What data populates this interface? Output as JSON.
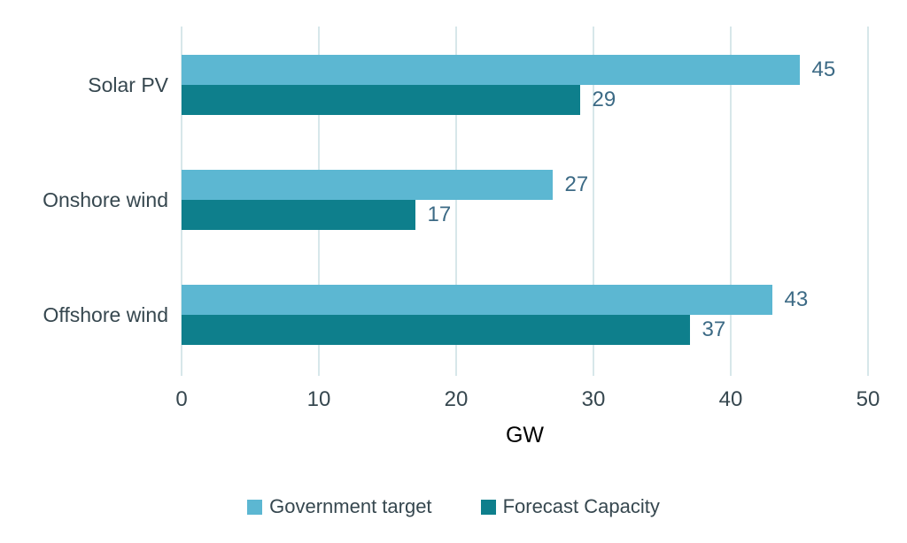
{
  "chart_data": {
    "type": "bar",
    "orientation": "horizontal",
    "categories": [
      "Solar PV",
      "Onshore wind",
      "Offshore wind"
    ],
    "series": [
      {
        "name": "Government target",
        "color": "#5cb7d2",
        "values": [
          45,
          27,
          43
        ]
      },
      {
        "name": "Forecast Capacity",
        "color": "#0e7f8c",
        "values": [
          29,
          17,
          37
        ]
      }
    ],
    "xlabel": "GW",
    "xticks": [
      "0",
      "10",
      "20",
      "30",
      "40",
      "50"
    ],
    "xlim": [
      0,
      50
    ],
    "grid": true,
    "legend_position": "bottom"
  },
  "colors": {
    "background": "#ffffff",
    "gridline": "#d7e7ea",
    "category_label": "#36474f",
    "tick_label": "#36474f",
    "value_label": "#3c6a85",
    "legend_label": "#36474f"
  }
}
